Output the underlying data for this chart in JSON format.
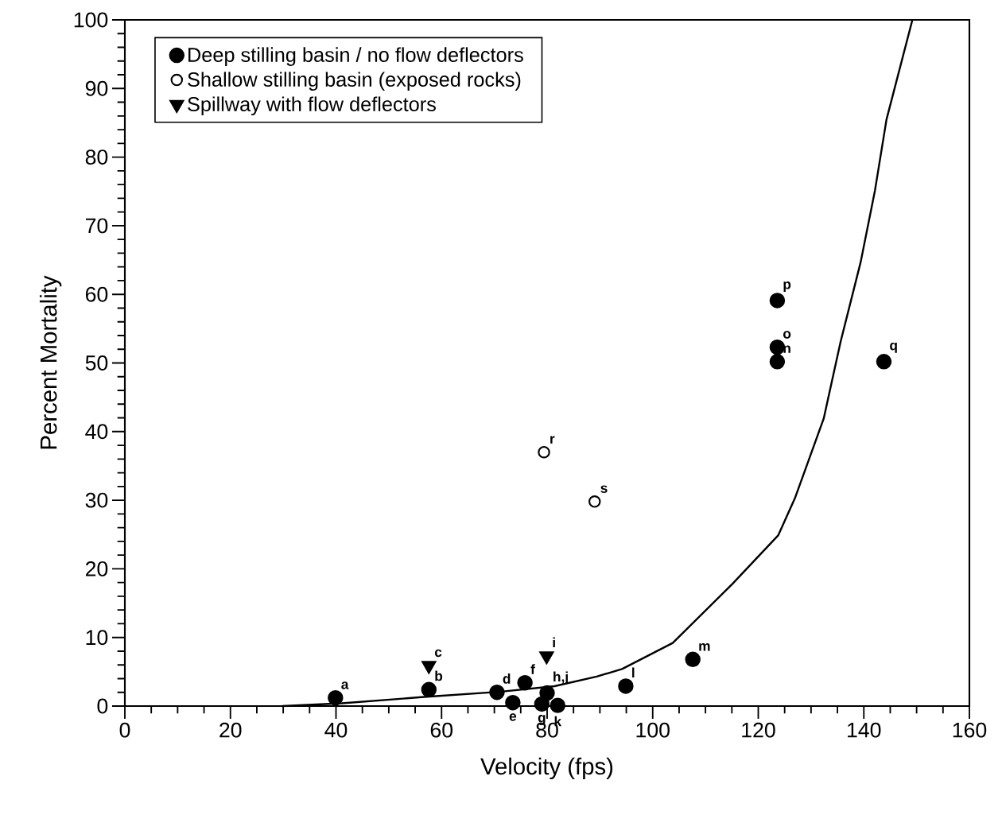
{
  "chart_data": {
    "type": "scatter",
    "xlabel": "Velocity (fps)",
    "ylabel": "Percent Mortality",
    "xlim": [
      0,
      160
    ],
    "ylim": [
      0,
      100
    ],
    "xticks": [
      0,
      20,
      40,
      60,
      80,
      100,
      120,
      140,
      160
    ],
    "yticks": [
      0,
      10,
      20,
      30,
      40,
      50,
      60,
      70,
      80,
      90,
      100
    ],
    "grid": false,
    "legend": "top left",
    "series": [
      {
        "name": "Deep stilling basin / no flow deflectors",
        "marker": "circle",
        "color": "#000000",
        "x": [
          39.9,
          57.6,
          70.5,
          73.5,
          75.8,
          79.0,
          80.0,
          82.0,
          94.9,
          107.6,
          123.6,
          123.6,
          123.6,
          143.8
        ],
        "values": [
          1.2,
          2.4,
          2.0,
          0.5,
          3.4,
          0.3,
          1.9,
          0.1,
          2.9,
          6.8,
          50.2,
          52.3,
          59.1,
          50.2
        ]
      },
      {
        "name": "Shallow stilling basin (exposed rocks)",
        "marker": "circle",
        "color": "#ffffff",
        "x": [
          79.4,
          89.0
        ],
        "values": [
          37.0,
          29.8
        ]
      },
      {
        "name": "Spillway with flow deflectors",
        "marker": "triangle",
        "color": "#000000",
        "x": [
          57.6,
          79.9
        ],
        "values": [
          5.9,
          7.3
        ]
      },
      {
        "type": "line",
        "color": "#000000",
        "line_style": "solid",
        "x": [
          29.8,
          41.1,
          56.2,
          71.3,
          81.4,
          89.4,
          94.2,
          103.8,
          115.1,
          123.8,
          127.0,
          132.4,
          135.6,
          139.4,
          142.1,
          144.3,
          149.2
        ],
        "values": [
          0,
          0.4,
          1.3,
          2.1,
          2.9,
          4.3,
          5.4,
          9.2,
          17.8,
          24.9,
          30.4,
          41.9,
          53.1,
          64.7,
          75.1,
          85.5,
          100
        ]
      }
    ],
    "annotations": [
      {
        "text": "a",
        "x": 39.9,
        "y": 1.2
      },
      {
        "text": "b",
        "x": 57.6,
        "y": 2.4
      },
      {
        "text": "c",
        "x": 57.6,
        "y": 5.9
      },
      {
        "text": "d",
        "x": 70.5,
        "y": 2.0
      },
      {
        "text": "e",
        "x": 73.5,
        "y": 0.5
      },
      {
        "text": "f",
        "x": 75.8,
        "y": 3.4
      },
      {
        "text": "g",
        "x": 79.0,
        "y": 0.3
      },
      {
        "text": "h,j",
        "x": 80.0,
        "y": 1.9
      },
      {
        "text": "i",
        "x": 79.9,
        "y": 7.3
      },
      {
        "text": "k",
        "x": 82.0,
        "y": 0.1
      },
      {
        "text": "l",
        "x": 94.9,
        "y": 2.9
      },
      {
        "text": "m",
        "x": 107.6,
        "y": 6.8
      },
      {
        "text": "n",
        "x": 123.6,
        "y": 50.2
      },
      {
        "text": "o",
        "x": 123.6,
        "y": 52.3
      },
      {
        "text": "p",
        "x": 123.6,
        "y": 59.1
      },
      {
        "text": "q",
        "x": 143.8,
        "y": 50.2
      },
      {
        "text": "r",
        "x": 79.4,
        "y": 37.0
      },
      {
        "text": "s",
        "x": 89.0,
        "y": 29.8
      }
    ]
  }
}
